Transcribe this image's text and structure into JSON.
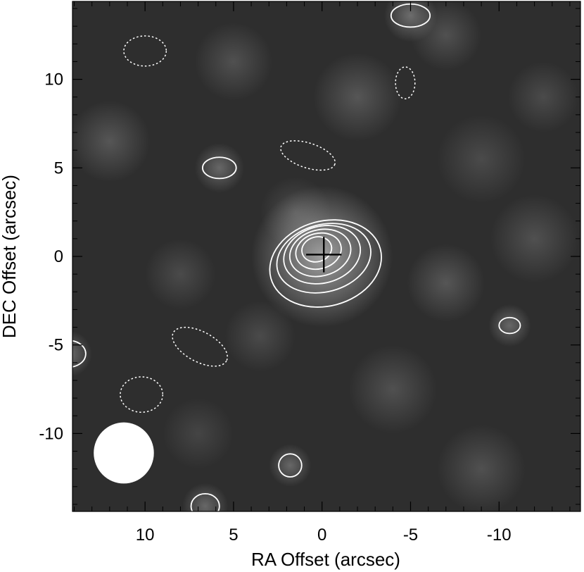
{
  "chart_data": {
    "type": "heatmap",
    "title": "",
    "xlabel": "RA Offset (arcsec)",
    "ylabel": "DEC Offset (arcsec)",
    "xlim": [
      14.1,
      -14.6
    ],
    "ylim": [
      -14.4,
      14.4
    ],
    "x_ticks": [
      {
        "value": 10,
        "label": "10"
      },
      {
        "value": 5,
        "label": "5"
      },
      {
        "value": 0,
        "label": "0"
      },
      {
        "value": -5,
        "label": "-5"
      },
      {
        "value": -10,
        "label": "-10"
      }
    ],
    "y_ticks": [
      {
        "value": 10,
        "label": "10"
      },
      {
        "value": 5,
        "label": "5"
      },
      {
        "value": 0,
        "label": "0"
      },
      {
        "value": -5,
        "label": "-5"
      },
      {
        "value": -10,
        "label": "-10"
      }
    ],
    "grid": false,
    "colormap": "grayscale",
    "source_marker": {
      "x": -0.1,
      "y": 0.1,
      "half_width": 1.0,
      "half_height": 1.0,
      "color": "#000000"
    },
    "beam": {
      "x": 11.2,
      "y": -11.1,
      "major": 3.4,
      "minor": 3.0,
      "color": "#ffffff"
    },
    "contour_color": "#ffffff",
    "positive_contours": [
      {
        "cx": -0.2,
        "cy": -0.4,
        "rx": 3.2,
        "ry": 2.4,
        "rotation": -15
      },
      {
        "cx": -0.1,
        "cy": -0.1,
        "rx": 2.7,
        "ry": 1.9,
        "rotation": -15
      },
      {
        "cx": 0.0,
        "cy": 0.1,
        "rx": 2.2,
        "ry": 1.6,
        "rotation": -15
      },
      {
        "cx": 0.1,
        "cy": 0.2,
        "rx": 1.75,
        "ry": 1.3,
        "rotation": -15
      },
      {
        "cx": 0.2,
        "cy": 0.3,
        "rx": 1.3,
        "ry": 1.0,
        "rotation": -15
      },
      {
        "cx": 0.3,
        "cy": 0.4,
        "rx": 0.85,
        "ry": 0.7,
        "rotation": -15
      },
      {
        "cx": 5.8,
        "cy": 5.0,
        "rx": 0.95,
        "ry": 0.6,
        "rotation": 0
      },
      {
        "cx": -5.0,
        "cy": 13.6,
        "rx": 1.1,
        "ry": 0.65,
        "rotation": 0
      },
      {
        "cx": -10.6,
        "cy": -3.9,
        "rx": 0.6,
        "ry": 0.45,
        "rotation": 0
      },
      {
        "cx": 1.8,
        "cy": -11.8,
        "rx": 0.65,
        "ry": 0.65,
        "rotation": 0
      },
      {
        "cx": 6.6,
        "cy": -14.1,
        "rx": 0.8,
        "ry": 0.7,
        "rotation": 0
      },
      {
        "cx": 14.3,
        "cy": -5.5,
        "rx": 0.95,
        "ry": 0.75,
        "rotation": 0
      }
    ],
    "negative_contours": [
      {
        "cx": 10.0,
        "cy": 11.6,
        "rx": 1.2,
        "ry": 0.85,
        "rotation": 0
      },
      {
        "cx": -4.7,
        "cy": 9.8,
        "rx": 0.55,
        "ry": 0.9,
        "rotation": 0
      },
      {
        "cx": 0.8,
        "cy": 5.7,
        "rx": 1.6,
        "ry": 0.7,
        "rotation": 18
      },
      {
        "cx": 6.9,
        "cy": -5.1,
        "rx": 1.7,
        "ry": 0.85,
        "rotation": 28
      },
      {
        "cx": 10.2,
        "cy": -7.8,
        "rx": 1.2,
        "ry": 1.0,
        "rotation": 0
      }
    ],
    "background_blobs": [
      {
        "cx": 0.0,
        "cy": 0.0,
        "r": 4.0,
        "v": 1.0
      },
      {
        "cx": 1.5,
        "cy": 2.5,
        "r": 2.0,
        "v": 0.25
      },
      {
        "cx": -2.0,
        "cy": 9.0,
        "r": 2.5,
        "v": 0.35
      },
      {
        "cx": 5.0,
        "cy": 11.0,
        "r": 2.2,
        "v": 0.3
      },
      {
        "cx": -7.0,
        "cy": 12.5,
        "r": 2.0,
        "v": 0.3
      },
      {
        "cx": -5.0,
        "cy": 13.6,
        "r": 1.5,
        "v": 0.55
      },
      {
        "cx": 5.8,
        "cy": 5.0,
        "r": 1.4,
        "v": 0.5
      },
      {
        "cx": 12.0,
        "cy": 6.5,
        "r": 2.3,
        "v": 0.35
      },
      {
        "cx": -9.0,
        "cy": 5.5,
        "r": 2.5,
        "v": 0.25
      },
      {
        "cx": -12.0,
        "cy": 1.0,
        "r": 2.5,
        "v": 0.3
      },
      {
        "cx": -7.0,
        "cy": -1.5,
        "r": 2.2,
        "v": 0.35
      },
      {
        "cx": 8.0,
        "cy": -1.0,
        "r": 2.0,
        "v": 0.25
      },
      {
        "cx": -10.6,
        "cy": -3.9,
        "r": 1.2,
        "v": 0.5
      },
      {
        "cx": 14.3,
        "cy": -5.5,
        "r": 1.3,
        "v": 0.55
      },
      {
        "cx": 3.5,
        "cy": -4.5,
        "r": 2.0,
        "v": 0.25
      },
      {
        "cx": -4.0,
        "cy": -7.5,
        "r": 2.5,
        "v": 0.3
      },
      {
        "cx": 1.8,
        "cy": -11.8,
        "r": 1.2,
        "v": 0.5
      },
      {
        "cx": 6.6,
        "cy": -14.1,
        "r": 1.3,
        "v": 0.5
      },
      {
        "cx": -9.0,
        "cy": -12.0,
        "r": 2.5,
        "v": 0.3
      },
      {
        "cx": 7.0,
        "cy": -10.0,
        "r": 2.0,
        "v": 0.2
      },
      {
        "cx": -12.5,
        "cy": 9.0,
        "r": 2.0,
        "v": 0.25
      }
    ]
  }
}
